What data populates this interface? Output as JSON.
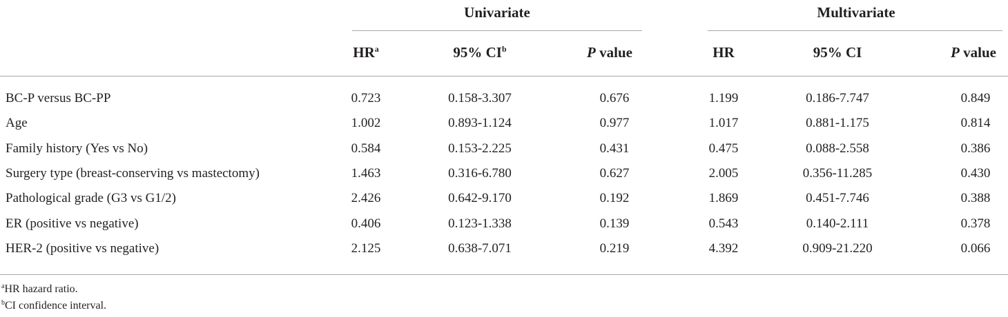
{
  "table": {
    "groups": [
      "Univariate",
      "Multivariate"
    ],
    "headers": [
      {
        "text": "HR",
        "sup": "a"
      },
      {
        "text": "95% CI",
        "sup": "b"
      },
      {
        "italic": "P",
        "text": "value"
      },
      {
        "text": "HR"
      },
      {
        "text": "95% CI"
      },
      {
        "italic": "P",
        "text": "value"
      }
    ],
    "rows": [
      [
        "BC-P versus BC-PP",
        "0.723",
        "0.158-3.307",
        "0.676",
        "1.199",
        "0.186-7.747",
        "0.849"
      ],
      [
        "Age",
        "1.002",
        "0.893-1.124",
        "0.977",
        "1.017",
        "0.881-1.175",
        "0.814"
      ],
      [
        "Family history (Yes vs No)",
        "0.584",
        "0.153-2.225",
        "0.431",
        "0.475",
        "0.088-2.558",
        "0.386"
      ],
      [
        "Surgery type (breast-conserving vs mastectomy)",
        "1.463",
        "0.316-6.780",
        "0.627",
        "2.005",
        "0.356-11.285",
        "0.430"
      ],
      [
        "Pathological grade (G3 vs G1/2)",
        "2.426",
        "0.642-9.170",
        "0.192",
        "1.869",
        "0.451-7.746",
        "0.388"
      ],
      [
        "ER (positive vs negative)",
        "0.406",
        "0.123-1.338",
        "0.139",
        "0.543",
        "0.140-2.111",
        "0.378"
      ],
      [
        "HER-2 (positive vs negative)",
        "2.125",
        "0.638-7.071",
        "0.219",
        "4.392",
        "0.909-21.220",
        "0.066"
      ]
    ],
    "footnotes": [
      {
        "sup": "a",
        "text": "HR hazard ratio."
      },
      {
        "sup": "b",
        "text": "CI confidence interval."
      }
    ]
  }
}
